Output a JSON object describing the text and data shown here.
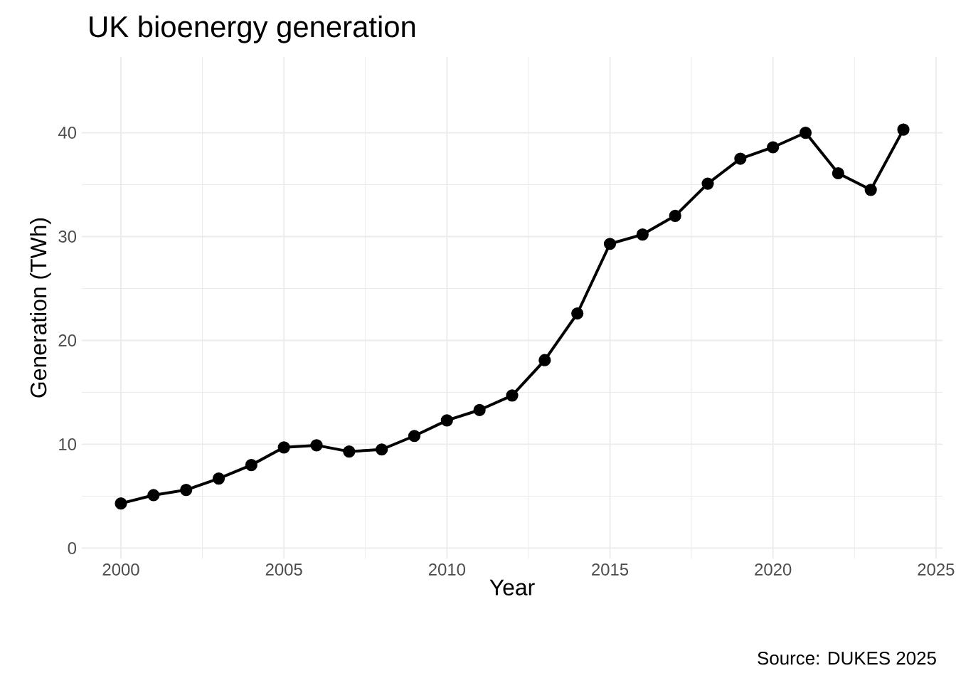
{
  "chart_data": {
    "type": "line",
    "title": "UK bioenergy generation",
    "xlabel": "Year",
    "ylabel": "Generation (TWh)",
    "annotations": [
      "Source: DUKES 2025"
    ],
    "x": [
      2000,
      2001,
      2002,
      2003,
      2004,
      2005,
      2006,
      2007,
      2008,
      2009,
      2010,
      2011,
      2012,
      2013,
      2014,
      2015,
      2016,
      2017,
      2018,
      2019,
      2020,
      2021,
      2022,
      2023,
      2024
    ],
    "series": [
      {
        "color": "#000000",
        "values": [
          4.3,
          5.1,
          5.6,
          6.7,
          8.0,
          9.7,
          9.9,
          9.3,
          9.5,
          10.8,
          12.3,
          13.3,
          14.7,
          18.1,
          22.6,
          29.3,
          30.2,
          32.0,
          35.1,
          37.5,
          38.6,
          40.0,
          36.1,
          34.5,
          40.3
        ]
      }
    ],
    "xlim": [
      1998.8,
      2025.2
    ],
    "ylim": [
      -1,
      47.3
    ],
    "xticks": [
      2000,
      2005,
      2010,
      2015,
      2020,
      2025
    ],
    "yticks": [
      0,
      10,
      20,
      30,
      40
    ],
    "grid": true,
    "marker": "circle",
    "line_style": "solid"
  }
}
